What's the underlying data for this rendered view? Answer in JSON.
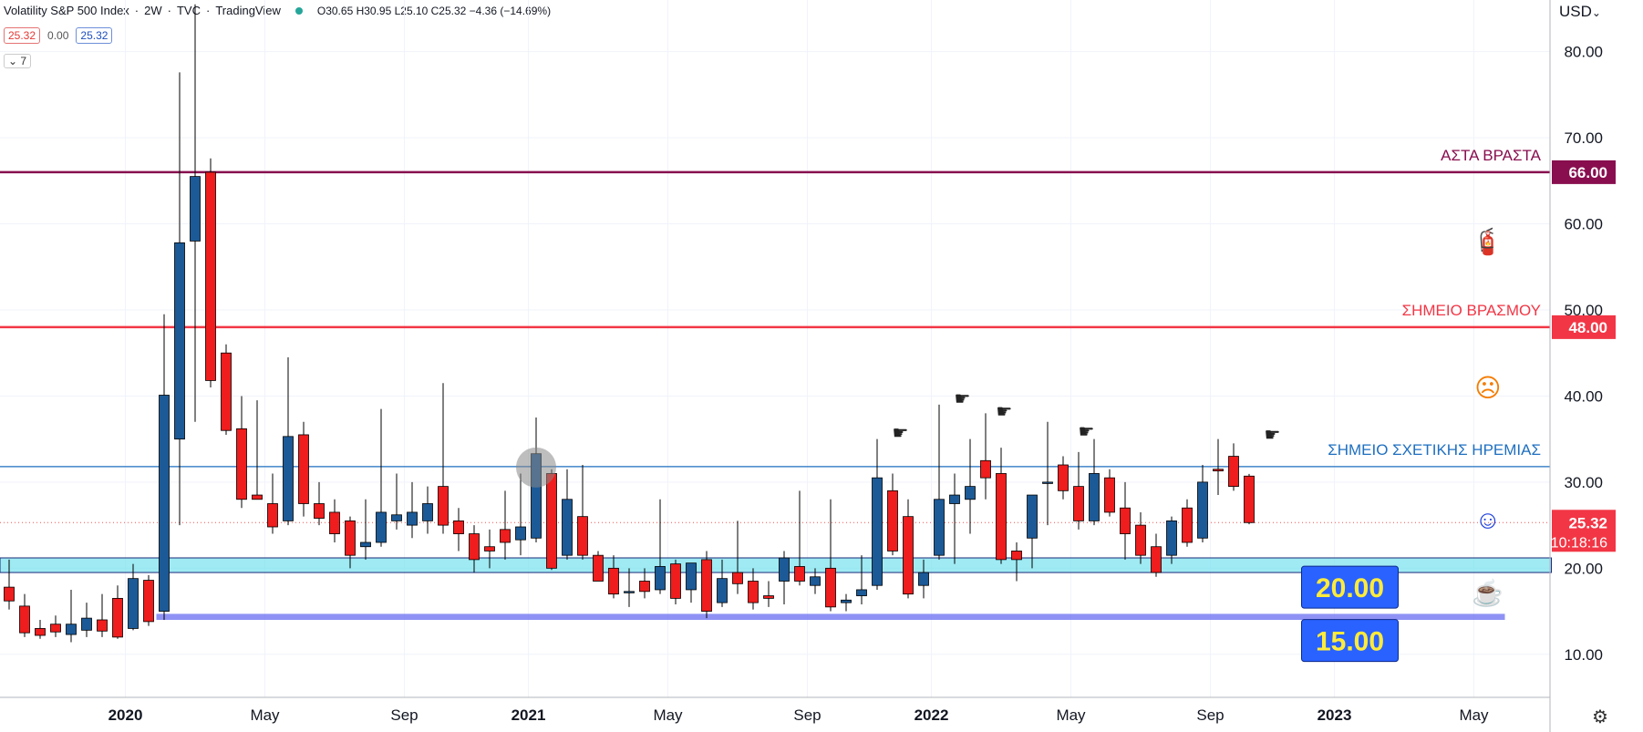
{
  "header": {
    "symbol": "Volatility S&P 500 Index",
    "interval": "2W",
    "exchange": "TVC",
    "source": "TradingView",
    "ohlc": "O30.65 H30.95 L25.10 C25.32 −4.36 (−14.69%)"
  },
  "value_boxes": {
    "price": "25.32",
    "change": "0.00",
    "close": "25.32"
  },
  "indicator_count": "7",
  "currency": "USD",
  "current_price_label": {
    "price": "25.32",
    "countdown": "10:18:16"
  },
  "colors": {
    "up": "#1c5a97",
    "down": "#ef1d1d",
    "accent": "#2962ff"
  },
  "chart_data": {
    "type": "candlestick",
    "y_ticks": [
      10,
      20,
      30,
      40,
      50,
      60,
      70,
      80
    ],
    "y_tick_labels": [
      "10.00",
      "20.00",
      "30.00",
      "40.00",
      "50.00",
      "60.00",
      "70.00",
      "80.00"
    ],
    "ylim": [
      5,
      86
    ],
    "x_ticks": [
      {
        "label": "2020",
        "index": 7.5
      },
      {
        "label": "May",
        "index": 16.5
      },
      {
        "label": "Sep",
        "index": 25.5
      },
      {
        "label": "2021",
        "index": 33.5
      },
      {
        "label": "May",
        "index": 42.5
      },
      {
        "label": "Sep",
        "index": 51.5
      },
      {
        "label": "2022",
        "index": 59.5
      },
      {
        "label": "May",
        "index": 68.5
      },
      {
        "label": "Sep",
        "index": 77.5
      },
      {
        "label": "2023",
        "index": 85.5
      },
      {
        "label": "May",
        "index": 94.5
      }
    ],
    "candles": [
      {
        "o": 17.8,
        "h": 21.0,
        "l": 15.2,
        "c": 16.2
      },
      {
        "o": 15.6,
        "h": 17.0,
        "l": 12.0,
        "c": 12.5
      },
      {
        "o": 13.0,
        "h": 14.0,
        "l": 11.8,
        "c": 12.2
      },
      {
        "o": 13.5,
        "h": 14.5,
        "l": 12.0,
        "c": 12.6
      },
      {
        "o": 12.3,
        "h": 17.5,
        "l": 11.4,
        "c": 13.5
      },
      {
        "o": 12.8,
        "h": 16.0,
        "l": 12.0,
        "c": 14.2
      },
      {
        "o": 14.0,
        "h": 17.0,
        "l": 12.0,
        "c": 12.7
      },
      {
        "o": 16.5,
        "h": 18.0,
        "l": 11.8,
        "c": 12.0
      },
      {
        "o": 13.0,
        "h": 20.5,
        "l": 12.8,
        "c": 18.8
      },
      {
        "o": 18.6,
        "h": 19.2,
        "l": 13.3,
        "c": 13.8
      },
      {
        "o": 15.0,
        "h": 49.5,
        "l": 14.0,
        "c": 40.1
      },
      {
        "o": 35.0,
        "h": 77.6,
        "l": 25.0,
        "c": 57.8
      },
      {
        "o": 58.0,
        "h": 85.5,
        "l": 37.0,
        "c": 65.5
      },
      {
        "o": 66.0,
        "h": 67.6,
        "l": 41.0,
        "c": 41.8
      },
      {
        "o": 45.0,
        "h": 46.0,
        "l": 35.5,
        "c": 36.0
      },
      {
        "o": 36.2,
        "h": 40.0,
        "l": 27.0,
        "c": 28.0
      },
      {
        "o": 28.5,
        "h": 39.5,
        "l": 28.0,
        "c": 28.0
      },
      {
        "o": 27.5,
        "h": 31.0,
        "l": 24.0,
        "c": 24.8
      },
      {
        "o": 25.5,
        "h": 44.5,
        "l": 25.0,
        "c": 35.3
      },
      {
        "o": 35.5,
        "h": 37.0,
        "l": 26.0,
        "c": 27.5
      },
      {
        "o": 27.5,
        "h": 30.0,
        "l": 25.0,
        "c": 25.8
      },
      {
        "o": 26.5,
        "h": 28.0,
        "l": 23.0,
        "c": 24.0
      },
      {
        "o": 25.5,
        "h": 26.0,
        "l": 20.0,
        "c": 21.5
      },
      {
        "o": 22.5,
        "h": 28.0,
        "l": 21.0,
        "c": 23.0
      },
      {
        "o": 23.0,
        "h": 38.5,
        "l": 22.5,
        "c": 26.5
      },
      {
        "o": 25.5,
        "h": 31.0,
        "l": 24.5,
        "c": 26.2
      },
      {
        "o": 25.0,
        "h": 30.0,
        "l": 23.5,
        "c": 26.5
      },
      {
        "o": 25.5,
        "h": 29.5,
        "l": 24.0,
        "c": 27.5
      },
      {
        "o": 29.5,
        "h": 41.5,
        "l": 24.0,
        "c": 25.0
      },
      {
        "o": 25.5,
        "h": 27.0,
        "l": 22.0,
        "c": 24.0
      },
      {
        "o": 24.0,
        "h": 25.0,
        "l": 19.5,
        "c": 21.0
      },
      {
        "o": 22.5,
        "h": 24.5,
        "l": 20.0,
        "c": 22.0
      },
      {
        "o": 24.5,
        "h": 29.0,
        "l": 21.0,
        "c": 23.0
      },
      {
        "o": 23.3,
        "h": 31.0,
        "l": 21.5,
        "c": 24.8
      },
      {
        "o": 23.5,
        "h": 37.5,
        "l": 23.0,
        "c": 33.3
      },
      {
        "o": 31.0,
        "h": 31.5,
        "l": 19.8,
        "c": 20.0
      },
      {
        "o": 21.5,
        "h": 31.5,
        "l": 21.0,
        "c": 28.0
      },
      {
        "o": 26.0,
        "h": 32.0,
        "l": 21.0,
        "c": 21.5
      },
      {
        "o": 21.5,
        "h": 22.0,
        "l": 18.5,
        "c": 18.5
      },
      {
        "o": 20.0,
        "h": 21.5,
        "l": 16.5,
        "c": 17.0
      },
      {
        "o": 17.3,
        "h": 20.0,
        "l": 15.5,
        "c": 17.3
      },
      {
        "o": 18.5,
        "h": 20.0,
        "l": 16.5,
        "c": 17.3
      },
      {
        "o": 17.5,
        "h": 28.0,
        "l": 17.0,
        "c": 20.2
      },
      {
        "o": 20.5,
        "h": 21.0,
        "l": 15.8,
        "c": 16.5
      },
      {
        "o": 17.5,
        "h": 20.0,
        "l": 16.0,
        "c": 20.6
      },
      {
        "o": 21.0,
        "h": 22.0,
        "l": 14.2,
        "c": 15.0
      },
      {
        "o": 16.0,
        "h": 21.0,
        "l": 15.5,
        "c": 18.8
      },
      {
        "o": 19.5,
        "h": 25.5,
        "l": 17.0,
        "c": 18.2
      },
      {
        "o": 18.5,
        "h": 20.0,
        "l": 15.2,
        "c": 16.0
      },
      {
        "o": 16.8,
        "h": 18.5,
        "l": 15.5,
        "c": 16.5
      },
      {
        "o": 18.5,
        "h": 22.0,
        "l": 15.8,
        "c": 21.2
      },
      {
        "o": 20.2,
        "h": 29.0,
        "l": 18.0,
        "c": 18.5
      },
      {
        "o": 18.0,
        "h": 20.0,
        "l": 17.0,
        "c": 19.0
      },
      {
        "o": 20.0,
        "h": 28.0,
        "l": 15.0,
        "c": 15.5
      },
      {
        "o": 16.0,
        "h": 17.0,
        "l": 15.0,
        "c": 16.3
      },
      {
        "o": 16.8,
        "h": 21.5,
        "l": 15.8,
        "c": 17.5
      },
      {
        "o": 18.0,
        "h": 35.0,
        "l": 17.5,
        "c": 30.5
      },
      {
        "o": 29.0,
        "h": 31.0,
        "l": 21.5,
        "c": 22.0
      },
      {
        "o": 26.0,
        "h": 28.0,
        "l": 16.5,
        "c": 17.0
      },
      {
        "o": 18.0,
        "h": 21.0,
        "l": 16.5,
        "c": 19.5
      },
      {
        "o": 21.5,
        "h": 39.0,
        "l": 21.0,
        "c": 28.0
      },
      {
        "o": 27.5,
        "h": 31.0,
        "l": 20.5,
        "c": 28.5
      },
      {
        "o": 28.0,
        "h": 35.0,
        "l": 24.0,
        "c": 29.5
      },
      {
        "o": 32.5,
        "h": 38.0,
        "l": 28.0,
        "c": 30.5
      },
      {
        "o": 31.0,
        "h": 34.0,
        "l": 20.5,
        "c": 21.0
      },
      {
        "o": 22.0,
        "h": 23.0,
        "l": 18.5,
        "c": 21.0
      },
      {
        "o": 23.5,
        "h": 28.5,
        "l": 20.0,
        "c": 28.5
      },
      {
        "o": 30.0,
        "h": 37.0,
        "l": 25.0,
        "c": 30.0
      },
      {
        "o": 32.0,
        "h": 33.0,
        "l": 28.0,
        "c": 29.0
      },
      {
        "o": 29.5,
        "h": 33.5,
        "l": 24.5,
        "c": 25.5
      },
      {
        "o": 25.5,
        "h": 35.0,
        "l": 25.0,
        "c": 31.0
      },
      {
        "o": 30.5,
        "h": 31.5,
        "l": 26.0,
        "c": 26.5
      },
      {
        "o": 27.0,
        "h": 30.0,
        "l": 21.0,
        "c": 24.0
      },
      {
        "o": 25.0,
        "h": 26.5,
        "l": 20.5,
        "c": 21.5
      },
      {
        "o": 22.5,
        "h": 24.0,
        "l": 19.0,
        "c": 19.5
      },
      {
        "o": 21.5,
        "h": 26.0,
        "l": 20.5,
        "c": 25.5
      },
      {
        "o": 27.0,
        "h": 28.0,
        "l": 22.5,
        "c": 23.0
      },
      {
        "o": 23.5,
        "h": 32.0,
        "l": 23.0,
        "c": 30.0
      },
      {
        "o": 31.5,
        "h": 35.0,
        "l": 28.5,
        "c": 31.3
      },
      {
        "o": 33.0,
        "h": 34.5,
        "l": 29.0,
        "c": 29.5
      },
      {
        "o": 30.7,
        "h": 30.95,
        "l": 25.1,
        "c": 25.3
      }
    ],
    "horizontal_levels": [
      {
        "label": "ΑΣΤΑ ΒΡΑΣΤΑ",
        "price": 66.0,
        "price_label": "66.00",
        "color": "#880e4f"
      },
      {
        "label": "ΣΗΜΕΙΟ ΒΡΑΣΜΟΥ",
        "price": 48.0,
        "price_label": "48.00",
        "color": "#f23645"
      },
      {
        "label": "ΣΗΜΕΙΟ ΣΧΕΤΙΚΗΣ ΗΡΕΜΙΑΣ",
        "price": 31.8,
        "price_label": "",
        "color": "#1e6fc0"
      }
    ],
    "zones": [
      {
        "name": "cyan-zone",
        "from": 19.5,
        "to": 21.2,
        "start_index": 0,
        "end_index": 99.5,
        "color": "#7fe3ef"
      },
      {
        "name": "blue-zone",
        "from": 14.0,
        "to": 14.7,
        "start_index": 9.5,
        "end_index": 96.5,
        "color": "#6a6df0"
      }
    ],
    "callouts": [
      {
        "name": "callout-20",
        "text": "20.00",
        "price": 17.8,
        "index": 86.5
      },
      {
        "name": "callout-15",
        "text": "15.00",
        "price": 11.6,
        "index": 86.5
      }
    ],
    "emoji_markers": [
      {
        "name": "fire-extinguisher-icon",
        "glyph": "🧯",
        "price": 58.0,
        "index": 95.4,
        "color": "#e53935"
      },
      {
        "name": "sad-face-icon",
        "glyph": "☹",
        "price": 41.0,
        "index": 95.4,
        "color": "#f57c00"
      },
      {
        "name": "smile-face-icon",
        "glyph": "☺",
        "price": 25.7,
        "index": 95.4,
        "color": "#1e3fdc"
      },
      {
        "name": "coffee-cup-icon",
        "glyph": "☕",
        "price": 17.2,
        "index": 95.4,
        "color": "#8d3b1a"
      }
    ],
    "hand_markers": [
      {
        "index": 57.5,
        "price": 35.0
      },
      {
        "index": 61.5,
        "price": 39.0
      },
      {
        "index": 64.2,
        "price": 37.5
      },
      {
        "index": 69.5,
        "price": 35.2
      },
      {
        "index": 81.5,
        "price": 34.8
      }
    ],
    "highlight_circle": {
      "index": 34.0,
      "price": 31.7
    }
  }
}
